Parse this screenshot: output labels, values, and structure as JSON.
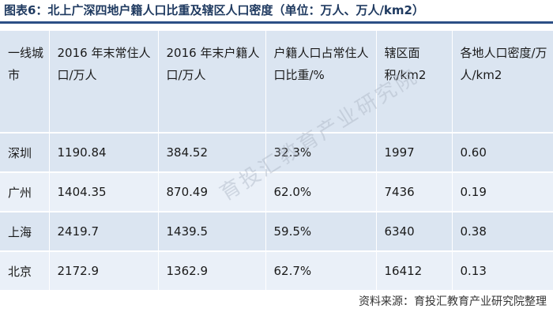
{
  "title": "图表6：北上广深四地户籍人口比重及辖区人口密度（单位：万人、万人/km2）",
  "table": {
    "headers": [
      "一线城市",
      "2016 年末常住人口/万人",
      "2016 年末户籍人口/万人",
      "户籍人口占常住人口比重/%",
      "辖区面积/km2",
      "各地人口密度/万人/km2"
    ],
    "rows": [
      [
        "深圳",
        "1190.84",
        "384.52",
        "32.3%",
        "1997",
        "0.60"
      ],
      [
        "广州",
        "1404.35",
        "870.49",
        "62.0%",
        "7436",
        "0.19"
      ],
      [
        "上海",
        "2419.7",
        "1439.5",
        "59.5%",
        "6340",
        "0.38"
      ],
      [
        "北京",
        "2172.9",
        "1362.9",
        "62.7%",
        "16412",
        "0.13"
      ]
    ]
  },
  "watermark": "育投汇教育产业研究院",
  "source": "资料来源：育投汇教育产业研究院整理"
}
